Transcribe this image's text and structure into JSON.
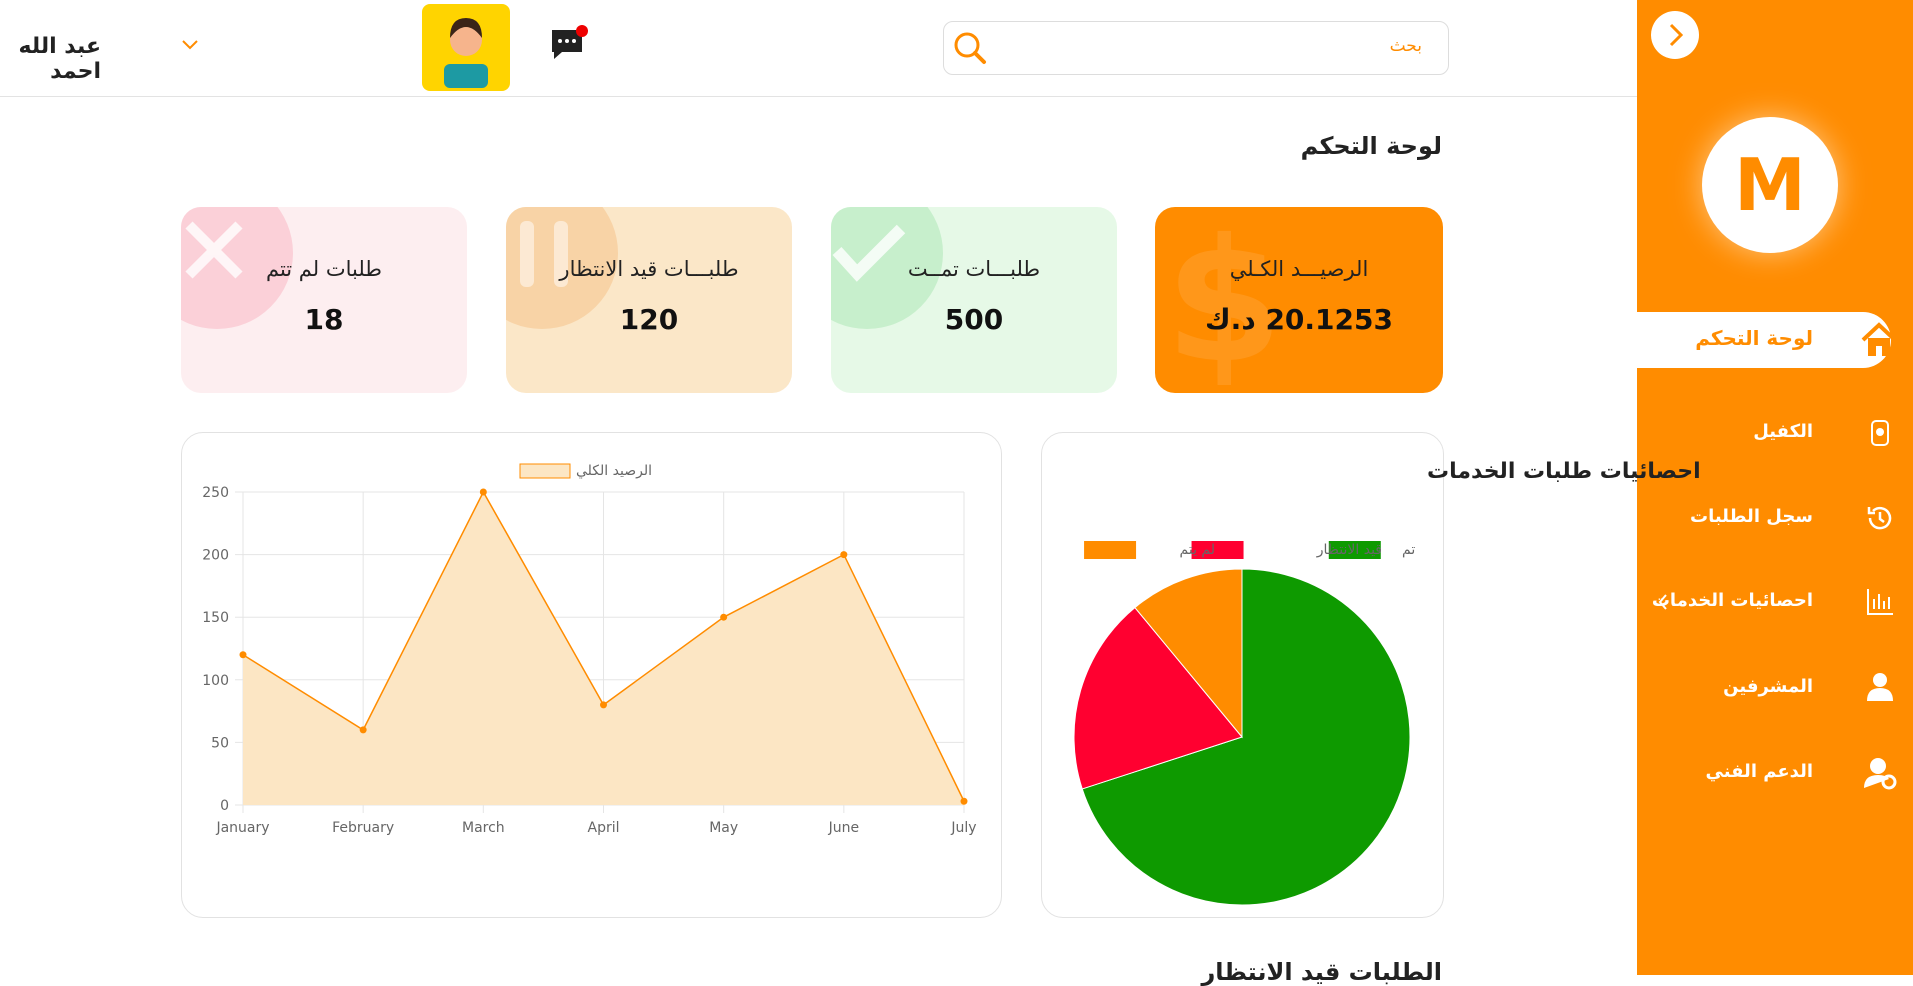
{
  "header": {
    "search_placeholder": "بحث",
    "user_name": "عبد الله احمد"
  },
  "sidebar": {
    "logo": "M",
    "menu": [
      "لوحة التحكم",
      "الكفيل",
      "سجل الطلبات",
      "احصائيات الخدمات",
      "المشرفين",
      "الدعم الفني"
    ]
  },
  "page_title": "لوحة التحكم",
  "cards": [
    {
      "label": "الرصيـــد الكـلي",
      "value": "20.1253 د.ك"
    },
    {
      "label": "طلبـــات تمــت",
      "value": 500
    },
    {
      "label": "طلبـــات قيد الانتظار",
      "value": 120
    },
    {
      "label": "طلبات لم تتم",
      "value": 18
    }
  ],
  "chart_data": [
    {
      "type": "line",
      "legend": "الرصيد الكلي",
      "color": "#ff8c00",
      "fill": "#fce6c4",
      "grid": true,
      "categories": [
        "January",
        "February",
        "March",
        "April",
        "May",
        "June",
        "July"
      ],
      "values": [
        120,
        60,
        250,
        80,
        150,
        200,
        3
      ],
      "ylim": [
        0,
        250
      ],
      "yticks": [
        0,
        50,
        100,
        150,
        200,
        250
      ]
    },
    {
      "type": "pie",
      "title": "احصائيات طلبات الخدمات",
      "categories": [
        "تم",
        "قيد الانتظار",
        "لم يتم"
      ],
      "values": [
        70,
        19,
        11
      ],
      "colors": [
        "#0e9a00",
        "#ff0030",
        "#ff8c00"
      ]
    }
  ],
  "section_heading": "الطلبات قيد الانتظار"
}
